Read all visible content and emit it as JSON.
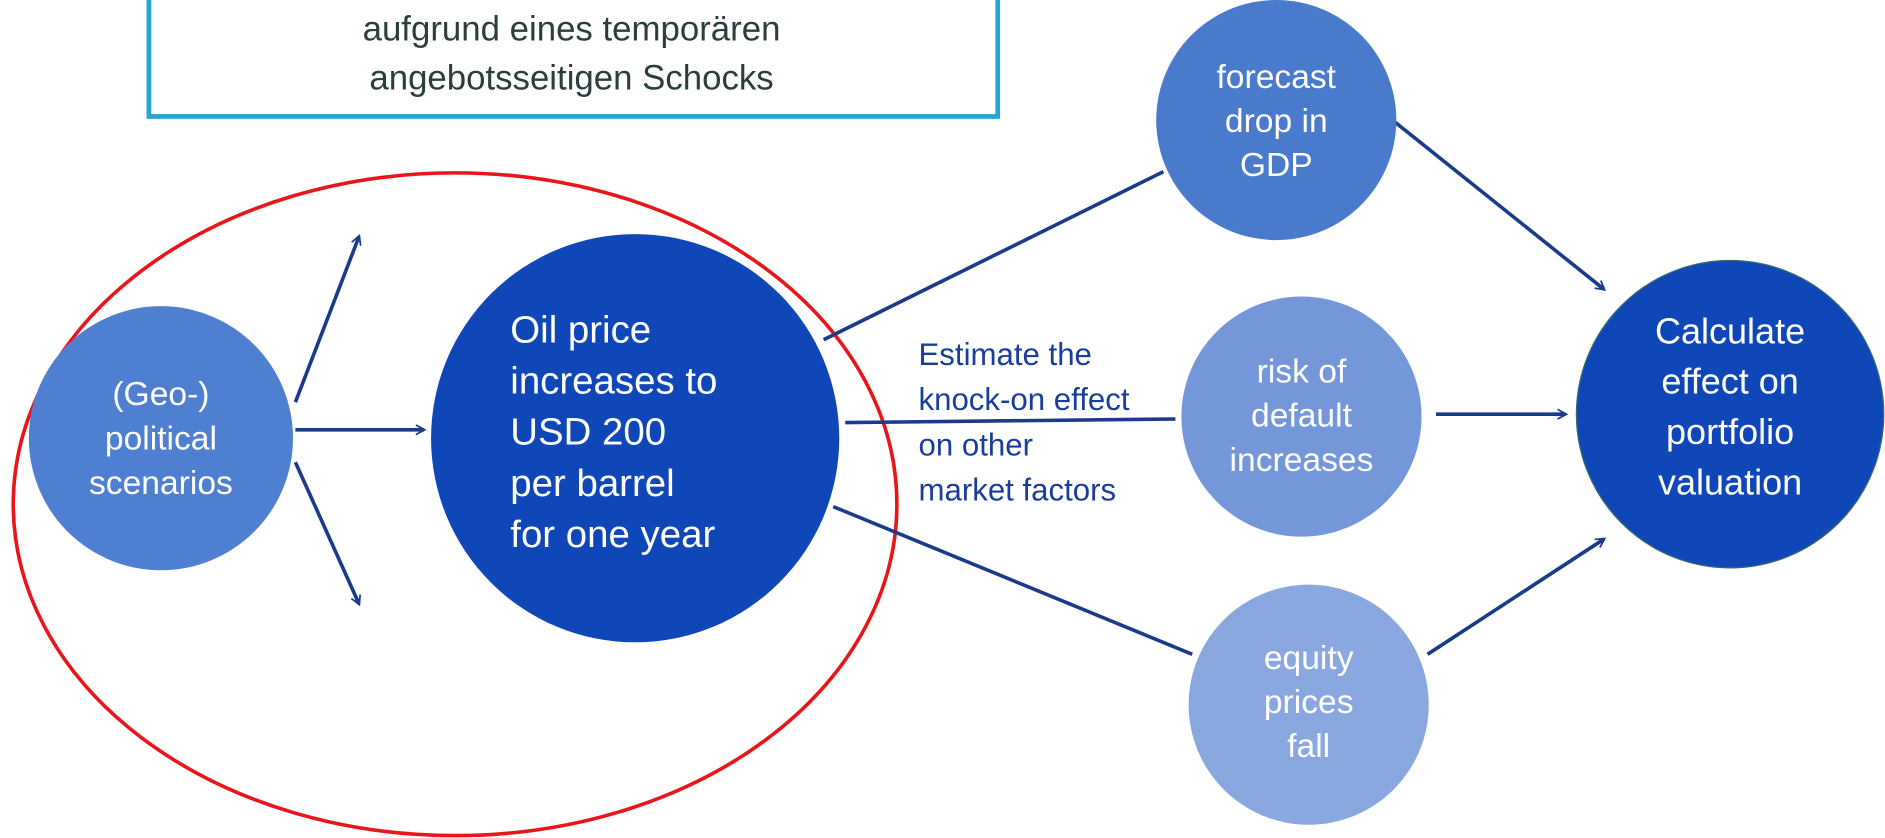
{
  "box": {
    "lines": [
      "aufgrund eines temporären",
      "angebotsseitigen Schocks"
    ]
  },
  "nodes": [
    {
      "lines": [
        "(Geo-)",
        "political",
        "scenarios"
      ]
    },
    {
      "lines": [
        "Oil price",
        "increases to",
        "USD 200",
        "per barrel",
        "for one year"
      ]
    },
    {
      "lines": [
        "forecast",
        "drop in",
        "GDP"
      ]
    },
    {
      "lines": [
        "risk of",
        "default",
        "increases"
      ]
    },
    {
      "lines": [
        "equity",
        "prices",
        "fall"
      ]
    },
    {
      "lines": [
        "Calculate",
        "effect on",
        "portfolio",
        "valuation"
      ]
    }
  ],
  "annotation": {
    "lines": [
      "Estimate the",
      "knock-on effect",
      "on other",
      "market factors"
    ]
  }
}
